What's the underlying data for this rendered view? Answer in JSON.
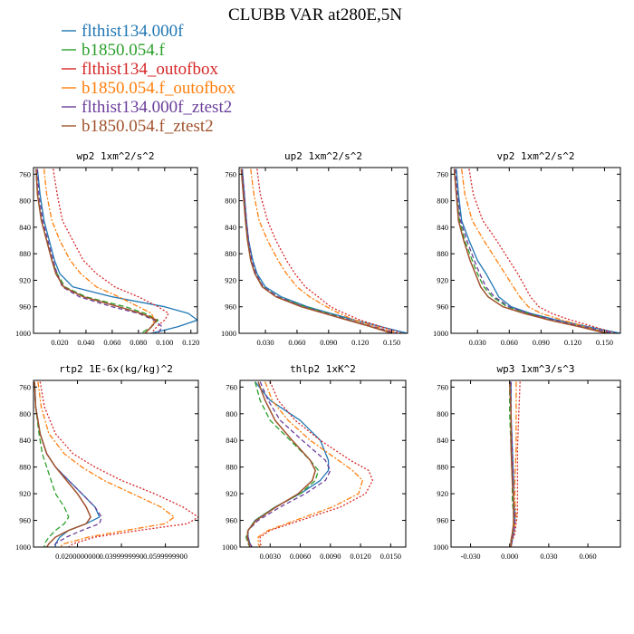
{
  "title": "CLUBB VAR at280E,5N",
  "legend": [
    {
      "label": "flthist134.000f",
      "color": "#1f77b4"
    },
    {
      "label": "b1850.054.f",
      "color": "#2ca02c"
    },
    {
      "label": "flthist134_outofbox",
      "color": "#d62728"
    },
    {
      "label": "b1850.054.f_outofbox",
      "color": "#ff7f0e"
    },
    {
      "label": "flthist134.000f_ztest2",
      "color": "#6a3d9a"
    },
    {
      "label": "b1850.054.f_ztest2",
      "color": "#a0522d"
    }
  ],
  "chart_data": [
    {
      "type": "line",
      "title": "wp2   1xm^2/s^2",
      "xlim": [
        0,
        0.125
      ],
      "ylim": [
        750,
        1000
      ],
      "y_inverted": true,
      "xticks": [
        "0.020",
        "0.040",
        "0.060",
        "0.080",
        "0.100",
        "0.120"
      ],
      "yticks": [
        "760",
        "800",
        "840",
        "880",
        "920",
        "960",
        "1000"
      ],
      "y": [
        752,
        790,
        830,
        860,
        890,
        910,
        930,
        945,
        960,
        970,
        980,
        990,
        1000
      ],
      "series": [
        {
          "values": [
            0.003,
            0.005,
            0.008,
            0.012,
            0.016,
            0.02,
            0.03,
            0.06,
            0.1,
            0.118,
            0.125,
            0.11,
            0.09
          ]
        },
        {
          "values": [
            0.002,
            0.003,
            0.006,
            0.01,
            0.014,
            0.018,
            0.024,
            0.04,
            0.07,
            0.085,
            0.095,
            0.09,
            0.082
          ]
        },
        {
          "values": [
            0.015,
            0.018,
            0.022,
            0.03,
            0.038,
            0.048,
            0.062,
            0.08,
            0.095,
            0.103,
            0.1,
            0.094,
            0.09
          ]
        },
        {
          "values": [
            0.008,
            0.01,
            0.014,
            0.02,
            0.028,
            0.036,
            0.048,
            0.065,
            0.08,
            0.09,
            0.092,
            0.09,
            0.085
          ]
        },
        {
          "values": [
            0.003,
            0.004,
            0.007,
            0.011,
            0.015,
            0.018,
            0.022,
            0.035,
            0.06,
            0.08,
            0.092,
            0.098,
            0.095
          ]
        },
        {
          "values": [
            0.002,
            0.003,
            0.006,
            0.01,
            0.014,
            0.017,
            0.023,
            0.038,
            0.065,
            0.082,
            0.094,
            0.09,
            0.085
          ]
        }
      ]
    },
    {
      "type": "line",
      "title": "up2   1xm^2/s^2",
      "xlim": [
        0.005,
        0.165
      ],
      "ylim": [
        750,
        1000
      ],
      "y_inverted": true,
      "xticks": [
        "0.030",
        "0.060",
        "0.090",
        "0.120",
        "0.150"
      ],
      "yticks": [
        "760",
        "800",
        "840",
        "880",
        "920",
        "960",
        "1000"
      ],
      "y": [
        752,
        790,
        830,
        860,
        890,
        910,
        930,
        945,
        960,
        970,
        980,
        990,
        1000
      ],
      "series": [
        {
          "values": [
            0.008,
            0.01,
            0.012,
            0.014,
            0.018,
            0.022,
            0.03,
            0.045,
            0.07,
            0.092,
            0.115,
            0.14,
            0.165
          ]
        },
        {
          "values": [
            0.007,
            0.009,
            0.011,
            0.013,
            0.016,
            0.02,
            0.028,
            0.042,
            0.068,
            0.09,
            0.11,
            0.13,
            0.15
          ]
        },
        {
          "values": [
            0.022,
            0.025,
            0.032,
            0.04,
            0.05,
            0.058,
            0.068,
            0.08,
            0.092,
            0.105,
            0.12,
            0.14,
            0.16
          ]
        },
        {
          "values": [
            0.016,
            0.019,
            0.024,
            0.032,
            0.042,
            0.05,
            0.06,
            0.072,
            0.088,
            0.1,
            0.115,
            0.135,
            0.155
          ]
        },
        {
          "values": [
            0.008,
            0.01,
            0.012,
            0.014,
            0.017,
            0.021,
            0.028,
            0.042,
            0.066,
            0.088,
            0.11,
            0.132,
            0.155
          ]
        },
        {
          "values": [
            0.007,
            0.009,
            0.011,
            0.013,
            0.016,
            0.02,
            0.027,
            0.04,
            0.064,
            0.086,
            0.108,
            0.13,
            0.15
          ]
        }
      ]
    },
    {
      "type": "line",
      "title": "vp2   1xm^2/s^2",
      "xlim": [
        0.005,
        0.165
      ],
      "ylim": [
        750,
        1000
      ],
      "y_inverted": true,
      "xticks": [
        "0.030",
        "0.060",
        "0.090",
        "0.120",
        "0.150"
      ],
      "yticks": [
        "760",
        "800",
        "840",
        "880",
        "920",
        "960",
        "1000"
      ],
      "y": [
        752,
        790,
        830,
        860,
        890,
        910,
        930,
        945,
        960,
        970,
        980,
        990,
        1000
      ],
      "series": [
        {
          "values": [
            0.01,
            0.012,
            0.015,
            0.022,
            0.03,
            0.038,
            0.045,
            0.05,
            0.062,
            0.08,
            0.105,
            0.135,
            0.165
          ]
        },
        {
          "values": [
            0.008,
            0.01,
            0.013,
            0.018,
            0.025,
            0.03,
            0.036,
            0.044,
            0.058,
            0.078,
            0.1,
            0.128,
            0.155
          ]
        },
        {
          "values": [
            0.022,
            0.026,
            0.035,
            0.048,
            0.06,
            0.068,
            0.075,
            0.08,
            0.088,
            0.1,
            0.118,
            0.14,
            0.16
          ]
        },
        {
          "values": [
            0.015,
            0.018,
            0.025,
            0.036,
            0.048,
            0.056,
            0.064,
            0.07,
            0.078,
            0.09,
            0.11,
            0.132,
            0.155
          ]
        },
        {
          "values": [
            0.009,
            0.011,
            0.014,
            0.02,
            0.027,
            0.032,
            0.038,
            0.046,
            0.06,
            0.078,
            0.102,
            0.13,
            0.158
          ]
        },
        {
          "values": [
            0.008,
            0.01,
            0.012,
            0.017,
            0.023,
            0.028,
            0.033,
            0.04,
            0.054,
            0.074,
            0.098,
            0.126,
            0.152
          ]
        }
      ]
    },
    {
      "type": "line",
      "title": "rtp2   1E-6x(kg/kg)^2",
      "xlim": [
        0,
        75
      ],
      "ylim": [
        750,
        1000
      ],
      "y_inverted": true,
      "xticks": [
        "0.0200000000",
        "0.0399999990",
        "0.0599999900"
      ],
      "xtick_positions": [
        20,
        40,
        60
      ],
      "yticks": [
        "760",
        "800",
        "840",
        "880",
        "920",
        "960",
        "1000"
      ],
      "y": [
        752,
        790,
        830,
        860,
        880,
        900,
        920,
        940,
        955,
        965,
        975,
        985,
        995,
        1000
      ],
      "series": [
        {
          "values": [
            0.5,
            1.0,
            3.0,
            6.0,
            10.0,
            16.0,
            22.0,
            28.0,
            30.0,
            24.0,
            16.0,
            12.0,
            10.0,
            10.0
          ]
        },
        {
          "values": [
            0.5,
            1.0,
            2.5,
            4.0,
            6.0,
            8.0,
            10.0,
            14.0,
            16.0,
            14.0,
            10.0,
            7.0,
            5.0,
            5.0
          ]
        },
        {
          "values": [
            3.0,
            5.0,
            10.0,
            18.0,
            28.0,
            40.0,
            55.0,
            68.0,
            75.0,
            70.0,
            48.0,
            28.0,
            18.0,
            16.0
          ]
        },
        {
          "values": [
            2.0,
            3.5,
            7.0,
            14.0,
            22.0,
            32.0,
            45.0,
            58.0,
            64.0,
            60.0,
            42.0,
            25.0,
            14.0,
            12.0
          ]
        },
        {
          "values": [
            0.5,
            1.0,
            3.0,
            6.0,
            10.0,
            16.0,
            22.0,
            28.0,
            31.0,
            30.0,
            22.0,
            15.0,
            10.0,
            9.0
          ]
        },
        {
          "values": [
            0.5,
            1.0,
            3.0,
            6.0,
            10.0,
            15.0,
            20.0,
            24.0,
            26.0,
            24.0,
            16.0,
            10.0,
            7.0,
            6.0
          ]
        }
      ]
    },
    {
      "type": "line",
      "title": "thlp2   1xK^2",
      "xlim": [
        0,
        0.0165
      ],
      "ylim": [
        750,
        1000
      ],
      "y_inverted": true,
      "xticks": [
        "0.0030",
        "0.0060",
        "0.0090",
        "0.0120",
        "0.0150"
      ],
      "yticks": [
        "760",
        "800",
        "840",
        "880",
        "920",
        "960",
        "1000"
      ],
      "y": [
        752,
        780,
        810,
        840,
        870,
        885,
        900,
        920,
        940,
        960,
        975,
        985,
        995,
        1000
      ],
      "series": [
        {
          "values": [
            0.0015,
            0.003,
            0.006,
            0.008,
            0.0088,
            0.0088,
            0.008,
            0.006,
            0.0035,
            0.0015,
            0.0008,
            0.0008,
            0.001,
            0.0012
          ]
        },
        {
          "values": [
            0.0015,
            0.002,
            0.003,
            0.005,
            0.007,
            0.0078,
            0.0075,
            0.006,
            0.0035,
            0.0015,
            0.0008,
            0.0006,
            0.0008,
            0.001
          ]
        },
        {
          "values": [
            0.003,
            0.0038,
            0.0055,
            0.008,
            0.011,
            0.0128,
            0.0132,
            0.0125,
            0.01,
            0.006,
            0.003,
            0.002,
            0.002,
            0.0022
          ]
        },
        {
          "values": [
            0.0025,
            0.0032,
            0.0048,
            0.007,
            0.0098,
            0.0112,
            0.0122,
            0.0118,
            0.0092,
            0.0055,
            0.0028,
            0.0018,
            0.0018,
            0.002
          ]
        },
        {
          "values": [
            0.002,
            0.0028,
            0.004,
            0.0062,
            0.0085,
            0.009,
            0.0085,
            0.0065,
            0.004,
            0.0018,
            0.0008,
            0.0008,
            0.001,
            0.0012
          ]
        },
        {
          "values": [
            0.0018,
            0.0025,
            0.0035,
            0.0052,
            0.007,
            0.0075,
            0.0072,
            0.0058,
            0.0036,
            0.0016,
            0.0008,
            0.0007,
            0.0009,
            0.001
          ]
        }
      ]
    },
    {
      "type": "line",
      "title": "wp3   1xm^3/s^3",
      "xlim": [
        -0.045,
        0.085
      ],
      "ylim": [
        750,
        1000
      ],
      "y_inverted": true,
      "xticks": [
        "-0.030",
        "0.000",
        "0.030",
        "0.060"
      ],
      "yticks": [
        "760",
        "800",
        "840",
        "880",
        "920",
        "960",
        "1000"
      ],
      "y": [
        752,
        800,
        850,
        900,
        930,
        950,
        965,
        980,
        990,
        1000
      ],
      "series": [
        {
          "values": [
            0.001,
            0.001,
            0.002,
            0.003,
            0.003,
            0.004,
            0.004,
            0.003,
            0.002,
            0.001
          ]
        },
        {
          "values": [
            0.0,
            0.0,
            0.001,
            0.002,
            0.002,
            0.003,
            0.003,
            0.002,
            0.001,
            0.001
          ]
        },
        {
          "values": [
            0.008,
            0.007,
            0.006,
            0.006,
            0.006,
            0.006,
            0.005,
            0.004,
            0.002,
            0.001
          ]
        },
        {
          "values": [
            0.005,
            0.005,
            0.005,
            0.004,
            0.004,
            0.005,
            0.004,
            0.003,
            0.002,
            0.001
          ]
        },
        {
          "values": [
            0.001,
            0.001,
            0.002,
            0.003,
            0.003,
            0.004,
            0.004,
            0.003,
            0.002,
            0.001
          ]
        },
        {
          "values": [
            0.0,
            0.001,
            0.001,
            0.002,
            0.003,
            0.003,
            0.003,
            0.002,
            0.001,
            0.001
          ]
        }
      ]
    }
  ]
}
